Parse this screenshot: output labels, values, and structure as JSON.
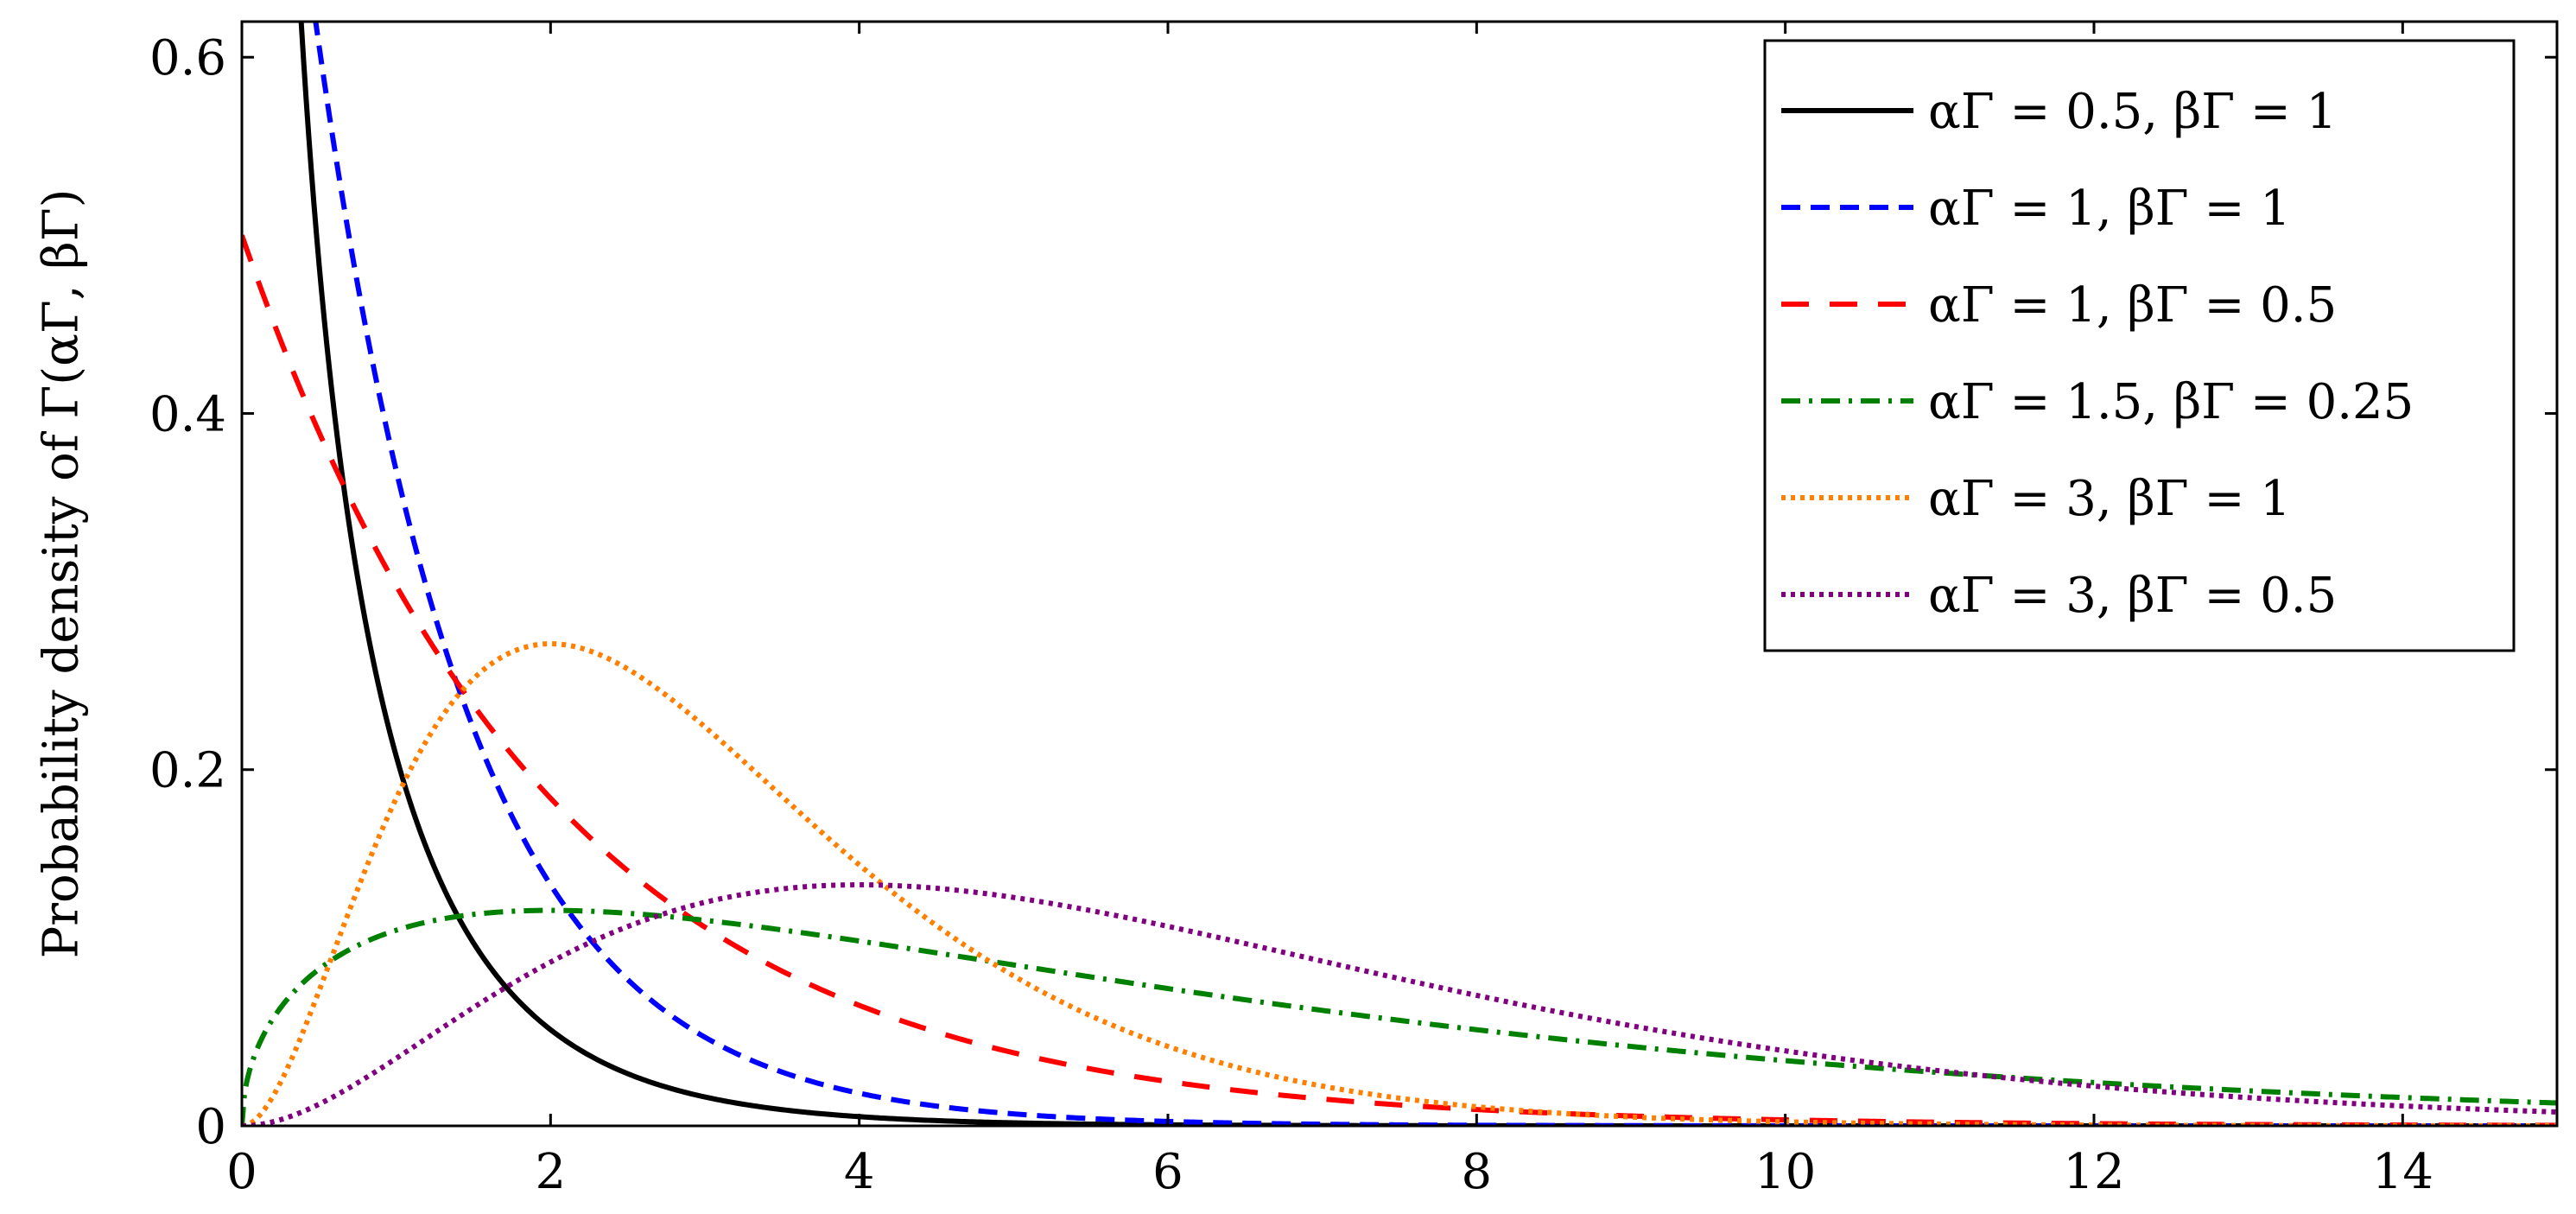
{
  "chart_data": {
    "type": "line",
    "title": "",
    "xlabel": "",
    "ylabel": "Probability density of Γ(αΓ, βΓ)",
    "xlim": [
      0,
      15
    ],
    "ylim": [
      0,
      0.62
    ],
    "xticks": [
      0,
      2,
      4,
      6,
      8,
      10,
      12,
      14
    ],
    "xtick_labels": [
      "0",
      "2",
      "4",
      "6",
      "8",
      "10",
      "12",
      "14"
    ],
    "yticks": [
      0,
      0.2,
      0.4,
      0.6
    ],
    "ytick_labels": [
      "0",
      "0.2",
      "0.4",
      "0.6"
    ],
    "grid": false,
    "legend_position": "top-right",
    "series": [
      {
        "label": "αΓ = 0.5, βΓ = 1",
        "alpha": 0.5,
        "beta": 1,
        "color": "#000000",
        "style": "solid",
        "x": [
          0.5,
          1,
          1.5,
          2,
          3,
          4,
          5,
          6
        ],
        "y": [
          0.484,
          0.208,
          0.103,
          0.054,
          0.016,
          0.005,
          0.002,
          0.001
        ]
      },
      {
        "label": "αΓ = 1, βΓ = 1",
        "alpha": 1,
        "beta": 1,
        "color": "#0000ff",
        "style": "dashed",
        "x": [
          0.5,
          1,
          1.5,
          2,
          3,
          4,
          5,
          6,
          8
        ],
        "y": [
          0.607,
          0.368,
          0.223,
          0.135,
          0.05,
          0.018,
          0.007,
          0.002,
          0.0003
        ]
      },
      {
        "label": "αΓ = 1, βΓ = 0.5",
        "alpha": 1,
        "beta": 0.5,
        "color": "#ff0000",
        "style": "loosely-dashed",
        "x": [
          0,
          1,
          2,
          3,
          4,
          5,
          6,
          8,
          10,
          15
        ],
        "y": [
          0.5,
          0.303,
          0.184,
          0.112,
          0.068,
          0.041,
          0.025,
          0.009,
          0.003,
          0.0003
        ]
      },
      {
        "label": "αΓ = 1.5, βΓ = 0.25",
        "alpha": 1.5,
        "beta": 0.25,
        "color": "#008000",
        "style": "dash-dot",
        "x": [
          0,
          1,
          2,
          3,
          4,
          6,
          8,
          10,
          12,
          15
        ],
        "y": [
          0,
          0.11,
          0.121,
          0.114,
          0.104,
          0.08,
          0.059,
          0.043,
          0.031,
          0.019
        ]
      },
      {
        "label": "αΓ = 3, βΓ = 1",
        "alpha": 3,
        "beta": 1,
        "color": "#ff7f00",
        "style": "dotted",
        "x": [
          0,
          1,
          2,
          3,
          4,
          5,
          6,
          8,
          10
        ],
        "y": [
          0,
          0.184,
          0.271,
          0.224,
          0.147,
          0.084,
          0.045,
          0.011,
          0.002
        ]
      },
      {
        "label": "αΓ = 3, βΓ = 0.5",
        "alpha": 3,
        "beta": 0.5,
        "color": "#800080",
        "style": "dotted",
        "x": [
          0,
          1,
          2,
          3,
          4,
          6,
          8,
          10,
          12,
          15
        ],
        "y": [
          0,
          0.038,
          0.092,
          0.126,
          0.135,
          0.112,
          0.073,
          0.042,
          0.022,
          0.007
        ]
      }
    ]
  }
}
